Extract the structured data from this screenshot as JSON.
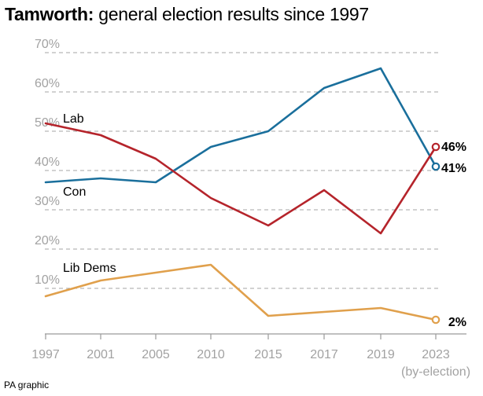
{
  "header": {
    "title_bold": "Tamworth:",
    "title_rest": " general election results since 1997"
  },
  "footer": {
    "credit": "PA graphic"
  },
  "chart_data": {
    "type": "line",
    "title": "Tamworth: general election results since 1997",
    "x": [
      "1997",
      "2001",
      "2005",
      "2010",
      "2015",
      "2017",
      "2019",
      "2023"
    ],
    "x_note": "(by-election)",
    "y_ticks": [
      "10%",
      "20%",
      "30%",
      "40%",
      "50%",
      "60%",
      "70%"
    ],
    "ylim": [
      0,
      70
    ],
    "grid": true,
    "legend": "inline",
    "series": [
      {
        "name": "Con",
        "color": "#1a6f9c",
        "values": [
          37,
          38,
          37,
          46,
          50,
          61,
          66,
          41
        ],
        "end_label": "41%"
      },
      {
        "name": "Lab",
        "color": "#b5242b",
        "values": [
          52,
          49,
          43,
          33,
          26,
          35,
          24,
          46
        ],
        "end_label": "46%"
      },
      {
        "name": "Lib Dems",
        "color": "#e0a04c",
        "values": [
          8,
          12,
          14,
          16,
          3,
          4,
          5,
          2
        ],
        "end_label": "2%"
      }
    ]
  }
}
